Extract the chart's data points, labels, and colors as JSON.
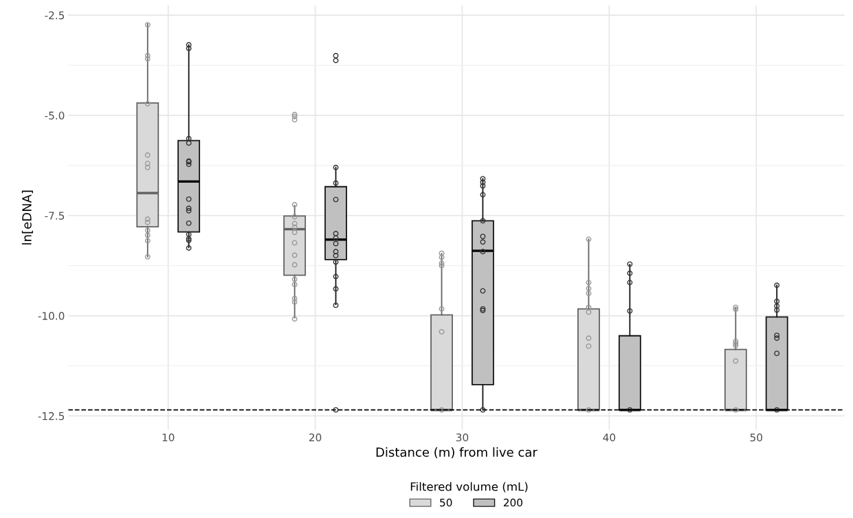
{
  "chart_data": {
    "type": "box",
    "xlabel": "Distance (m) from live car",
    "ylabel": "ln[eDNA]",
    "legend_title": "Filtered volume (mL)",
    "categories": [
      "10",
      "20",
      "30",
      "40",
      "50"
    ],
    "ylim": [
      -12.85,
      -2.25
    ],
    "yticks": [
      {
        "value": -2.5,
        "label": "-2.5"
      },
      {
        "value": -5.0,
        "label": "-5.0"
      },
      {
        "value": -7.5,
        "label": "-7.5"
      },
      {
        "value": -10.0,
        "label": "-10.0"
      },
      {
        "value": -12.5,
        "label": "-12.5"
      }
    ],
    "grid": true,
    "legend": "bottom",
    "marker": "circle",
    "ref_lines": [
      {
        "axis": "y",
        "value": -12.35,
        "color": "#000000",
        "line_style": "dashed"
      }
    ],
    "series": [
      {
        "name": "50",
        "color": "#d9d9d9",
        "boxes": [
          {
            "low": -8.53,
            "q1": -7.78,
            "median": -6.94,
            "q3": -4.69,
            "high": -2.72
          },
          {
            "low": -10.05,
            "q1": -8.99,
            "median": -7.84,
            "q3": -7.51,
            "high": -7.25
          },
          {
            "low": -12.35,
            "q1": -12.35,
            "median": -12.35,
            "q3": -9.98,
            "high": -8.45
          },
          {
            "low": -12.35,
            "q1": -12.35,
            "median": -12.35,
            "q3": -9.83,
            "high": -8.09
          },
          {
            "low": -12.35,
            "q1": -12.35,
            "median": -12.35,
            "q3": -10.84,
            "high": -9.81
          }
        ]
      },
      {
        "name": "200",
        "color": "#c0c0c0",
        "boxes": [
          {
            "low": -8.3,
            "q1": -7.91,
            "median": -6.65,
            "q3": -5.63,
            "high": -3.24
          },
          {
            "low": -9.72,
            "q1": -8.6,
            "median": -8.1,
            "q3": -6.78,
            "high": -6.3
          },
          {
            "low": -12.35,
            "q1": -11.72,
            "median": -8.38,
            "q3": -7.63,
            "high": -6.58
          },
          {
            "low": -12.35,
            "q1": -12.35,
            "median": -12.35,
            "q3": -10.5,
            "high": -8.72
          },
          {
            "low": -12.35,
            "q1": -12.35,
            "median": -12.35,
            "q3": -10.03,
            "high": -9.24
          }
        ]
      },
      {
        "type": "scatter",
        "color": "#999999",
        "x": [
          "10",
          "10",
          "10",
          "10",
          "10",
          "10",
          "10",
          "10",
          "10",
          "10",
          "10",
          "10",
          "10",
          "10",
          "20",
          "20",
          "20",
          "20",
          "20",
          "20",
          "20",
          "20",
          "20",
          "20",
          "20",
          "20",
          "20",
          "20",
          "20",
          "20",
          "30",
          "30",
          "30",
          "30",
          "30",
          "30",
          "30",
          "40",
          "40",
          "40",
          "40",
          "40",
          "40",
          "40",
          "40",
          "40",
          "50",
          "50",
          "50",
          "50",
          "50",
          "50",
          "50"
        ],
        "values": [
          -2.74,
          -3.51,
          -3.59,
          -4.71,
          null,
          -5.99,
          -6.2,
          -6.3,
          -7.59,
          -7.67,
          -7.87,
          -7.99,
          -8.13,
          -8.53,
          -4.98,
          -5.03,
          -5.11,
          -7.23,
          -7.53,
          -7.7,
          -7.79,
          -7.92,
          -8.18,
          -8.49,
          -8.73,
          -9.09,
          -9.22,
          -9.57,
          -9.66,
          -10.08,
          -8.44,
          -8.54,
          -8.69,
          -8.75,
          -9.83,
          -10.4,
          -12.35,
          -8.09,
          -9.17,
          -9.32,
          -9.44,
          -9.79,
          -9.91,
          -10.56,
          -10.76,
          -12.35,
          -9.79,
          -9.84,
          -10.64,
          -10.7,
          -10.75,
          -11.13,
          -12.35
        ]
      },
      {
        "type": "scatter",
        "color": "#333333",
        "x": [
          "10",
          "10",
          "10",
          "10",
          "10",
          "10",
          "10",
          "10",
          "10",
          "10",
          "10",
          "10",
          "10",
          "10",
          "10",
          "20",
          "20",
          "20",
          "20",
          "20",
          "20",
          "20",
          "20",
          "20",
          "20",
          "20",
          "20",
          "20",
          "20",
          "20",
          "30",
          "30",
          "30",
          "30",
          "30",
          "30",
          "30",
          "30",
          "30",
          "30",
          "30",
          "30",
          "40",
          "40",
          "40",
          "40",
          "40",
          "50",
          "50",
          "50",
          "50",
          "50",
          "50",
          "50",
          "50"
        ],
        "values": [
          -3.24,
          -3.33,
          -5.58,
          -5.69,
          -6.14,
          -6.16,
          -6.22,
          -7.09,
          -7.32,
          -7.38,
          -7.69,
          -7.97,
          -8.08,
          -8.12,
          -8.31,
          -3.51,
          -3.63,
          -6.3,
          -6.69,
          -7.1,
          -7.95,
          -8.06,
          -8.2,
          -8.4,
          -8.5,
          -8.66,
          -9.02,
          -9.33,
          -9.74,
          -12.35,
          -6.58,
          -6.67,
          -6.76,
          -6.98,
          -7.63,
          -8.02,
          -8.16,
          -8.4,
          -9.38,
          -9.83,
          -9.87,
          -12.35,
          -8.71,
          -8.94,
          -9.17,
          -9.88,
          -12.35,
          -9.24,
          -9.64,
          -9.76,
          -9.86,
          -10.49,
          -10.56,
          -10.94,
          -12.35
        ]
      }
    ]
  }
}
